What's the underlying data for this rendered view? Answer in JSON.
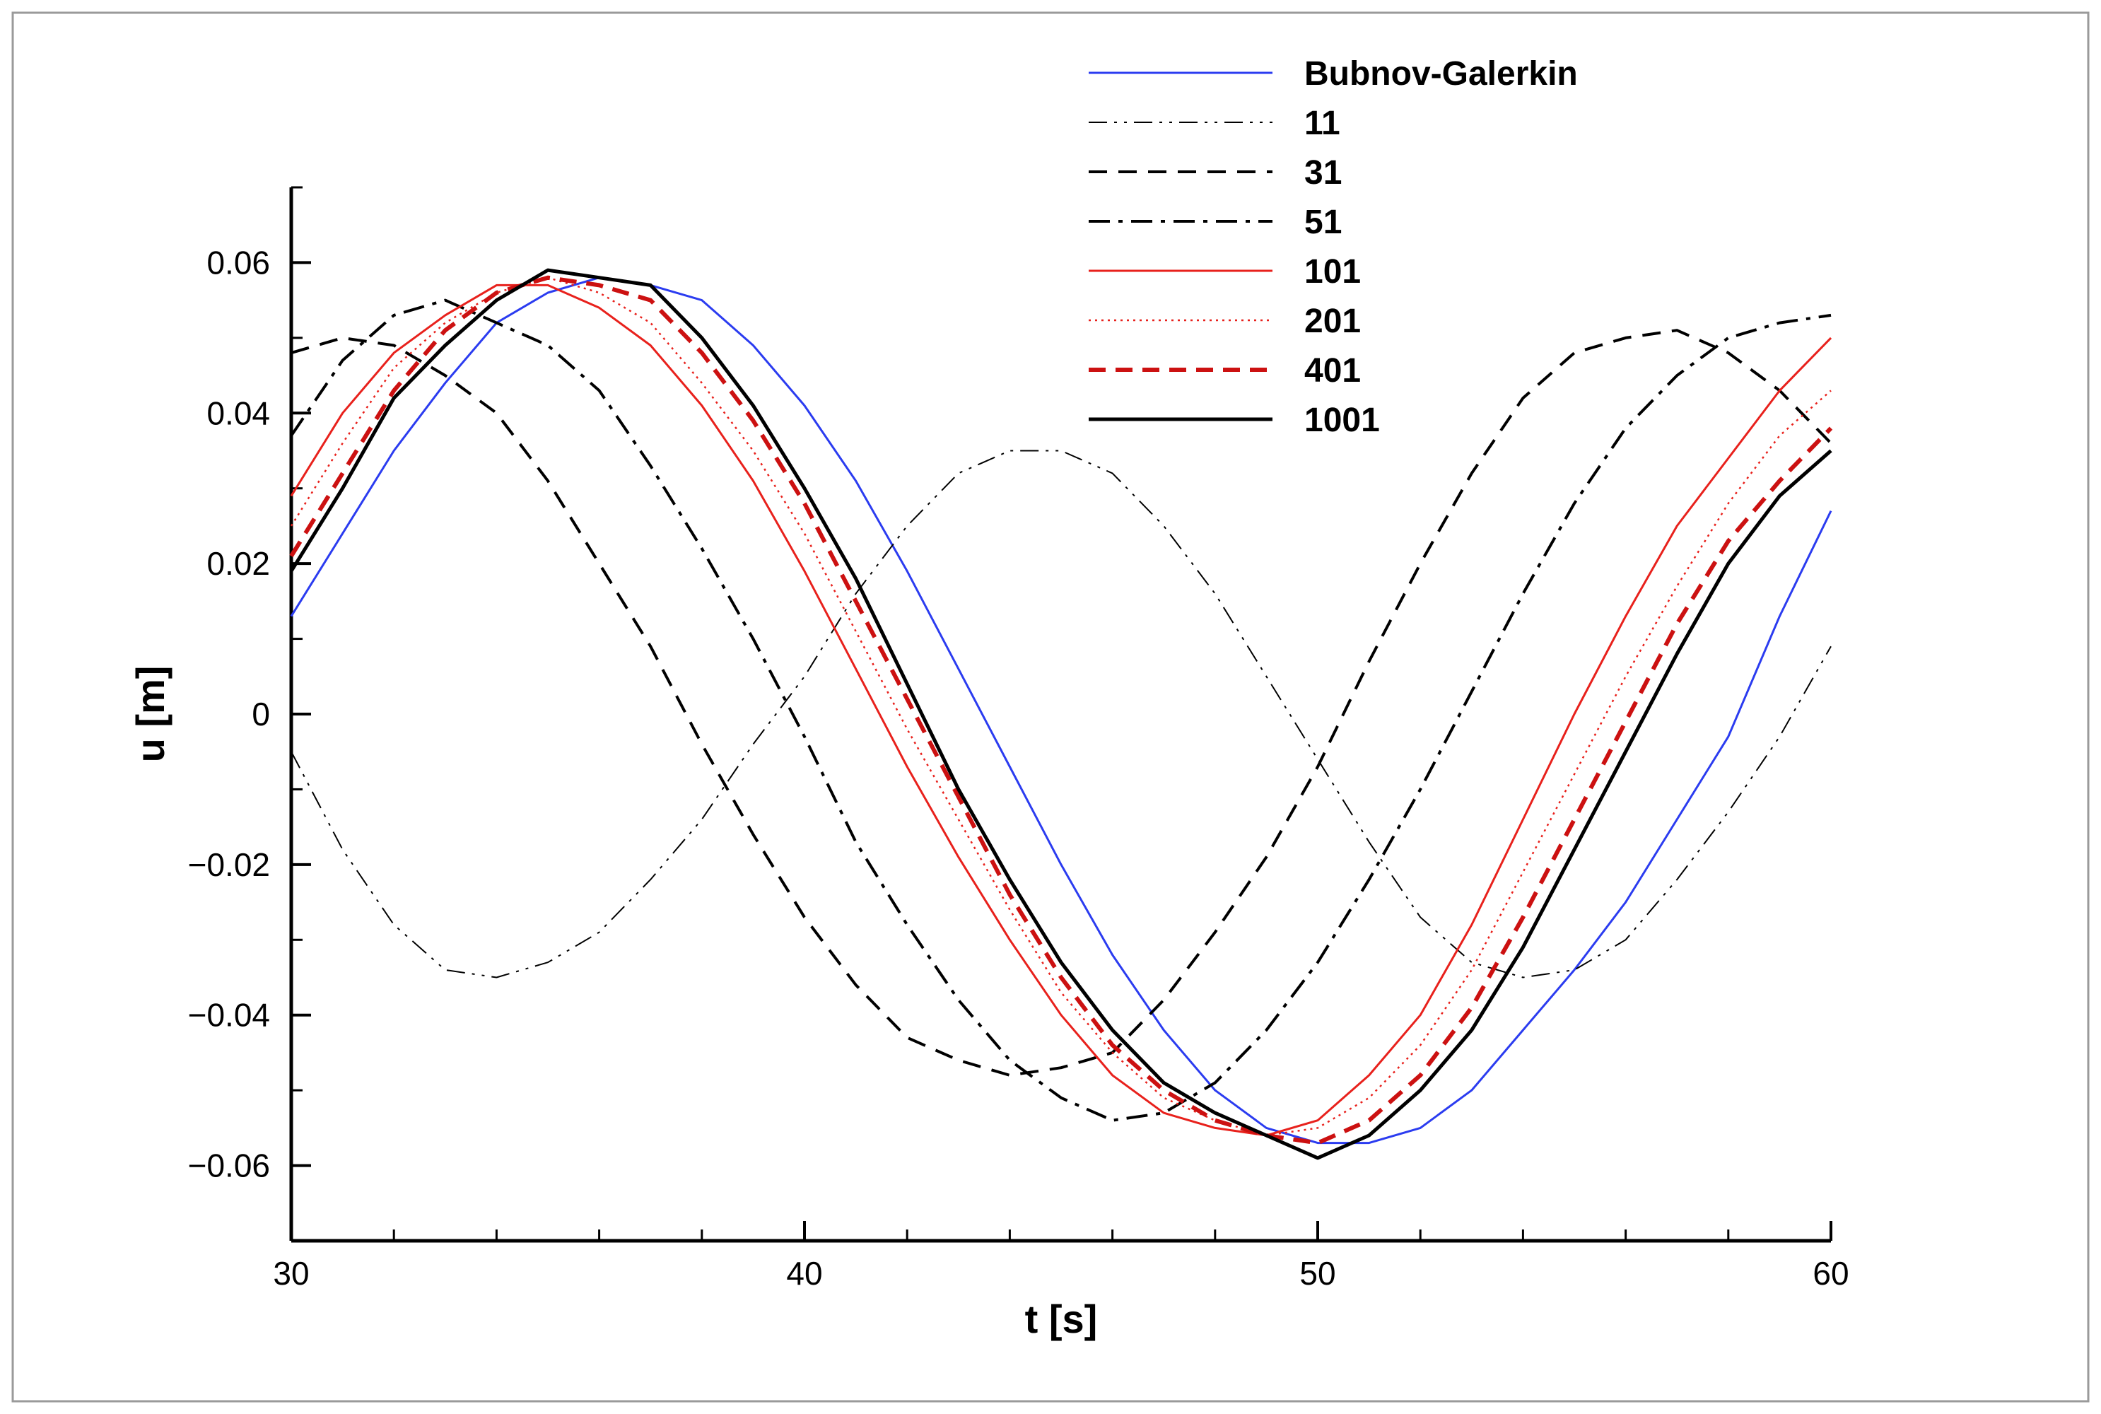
{
  "chart_data": {
    "type": "line",
    "title": "",
    "xlabel": "t [s]",
    "ylabel": "u [m]",
    "xlim": [
      30,
      60
    ],
    "ylim": [
      -0.07,
      0.07
    ],
    "x_ticks": [
      30,
      40,
      50,
      60
    ],
    "x_tick_labels": [
      "30",
      "40",
      "50",
      "60"
    ],
    "y_ticks": [
      -0.06,
      -0.04,
      -0.02,
      0,
      0.02,
      0.04,
      0.06
    ],
    "y_tick_labels": [
      "-0.06",
      "-0.04",
      "-0.02",
      "0",
      "0.02",
      "0.04",
      "0.06"
    ],
    "grid": false,
    "legend_position": "top-right",
    "series": [
      {
        "name": "Bubnov-Galerkin",
        "color": "#2b3cf0",
        "dash": "solid",
        "x": [
          30,
          31,
          32,
          33,
          34,
          35,
          36,
          37,
          38,
          39,
          40,
          41,
          42,
          43,
          44,
          45,
          46,
          47,
          48,
          49,
          50,
          51,
          52,
          53,
          54,
          55,
          56,
          57,
          58,
          59,
          60
        ],
        "y": [
          0.013,
          0.024,
          0.035,
          0.044,
          0.052,
          0.056,
          0.058,
          0.057,
          0.055,
          0.049,
          0.041,
          0.031,
          0.019,
          0.006,
          -0.007,
          -0.02,
          -0.032,
          -0.042,
          -0.05,
          -0.055,
          -0.057,
          -0.057,
          -0.055,
          -0.05,
          -0.042,
          -0.034,
          -0.025,
          -0.014,
          -0.003,
          0.013,
          0.027
        ]
      },
      {
        "name": "11",
        "color": "#000000",
        "dash": "dash-dot-dot",
        "x": [
          30,
          31,
          32,
          33,
          34,
          35,
          36,
          37,
          38,
          39,
          40,
          41,
          42,
          43,
          44,
          45,
          46,
          47,
          48,
          49,
          50,
          51,
          52,
          53,
          54,
          55,
          56,
          57,
          58,
          59,
          60
        ],
        "y": [
          -0.005,
          -0.018,
          -0.028,
          -0.034,
          -0.035,
          -0.033,
          -0.029,
          -0.022,
          -0.014,
          -0.004,
          0.005,
          0.016,
          0.025,
          0.032,
          0.035,
          0.035,
          0.032,
          0.025,
          0.016,
          0.005,
          -0.006,
          -0.017,
          -0.027,
          -0.033,
          -0.035,
          -0.034,
          -0.03,
          -0.022,
          -0.013,
          -0.003,
          0.009
        ]
      },
      {
        "name": "31",
        "color": "#000000",
        "dash": "dashed",
        "x": [
          30,
          31,
          32,
          33,
          34,
          35,
          36,
          37,
          38,
          39,
          40,
          41,
          42,
          43,
          44,
          45,
          46,
          47,
          48,
          49,
          50,
          51,
          52,
          53,
          54,
          55,
          56,
          57,
          58,
          59,
          60
        ],
        "y": [
          0.048,
          0.05,
          0.049,
          0.045,
          0.04,
          0.031,
          0.02,
          0.009,
          -0.004,
          -0.016,
          -0.027,
          -0.036,
          -0.043,
          -0.046,
          -0.048,
          -0.047,
          -0.045,
          -0.038,
          -0.029,
          -0.019,
          -0.007,
          0.007,
          0.02,
          0.032,
          0.042,
          0.048,
          0.05,
          0.051,
          0.048,
          0.043,
          0.036
        ]
      },
      {
        "name": "51",
        "color": "#000000",
        "dash": "dash-dot",
        "x": [
          30,
          31,
          32,
          33,
          34,
          35,
          36,
          37,
          38,
          39,
          40,
          41,
          42,
          43,
          44,
          45,
          46,
          47,
          48,
          49,
          50,
          51,
          52,
          53,
          54,
          55,
          56,
          57,
          58,
          59,
          60
        ],
        "y": [
          0.037,
          0.047,
          0.053,
          0.055,
          0.052,
          0.049,
          0.043,
          0.033,
          0.022,
          0.01,
          -0.003,
          -0.017,
          -0.028,
          -0.038,
          -0.046,
          -0.051,
          -0.054,
          -0.053,
          -0.049,
          -0.042,
          -0.033,
          -0.022,
          -0.01,
          0.003,
          0.016,
          0.028,
          0.038,
          0.045,
          0.05,
          0.052,
          0.053
        ]
      },
      {
        "name": "101",
        "color": "#e8211c",
        "dash": "solid",
        "x": [
          30,
          31,
          32,
          33,
          34,
          35,
          36,
          37,
          38,
          39,
          40,
          41,
          42,
          43,
          44,
          45,
          46,
          47,
          48,
          49,
          50,
          51,
          52,
          53,
          54,
          55,
          56,
          57,
          58,
          59,
          60
        ],
        "y": [
          0.029,
          0.04,
          0.048,
          0.053,
          0.057,
          0.057,
          0.054,
          0.049,
          0.041,
          0.031,
          0.019,
          0.006,
          -0.007,
          -0.019,
          -0.03,
          -0.04,
          -0.048,
          -0.053,
          -0.055,
          -0.056,
          -0.054,
          -0.048,
          -0.04,
          -0.028,
          -0.014,
          0.0,
          0.013,
          0.025,
          0.034,
          0.043,
          0.05
        ]
      },
      {
        "name": "201",
        "color": "#e8211c",
        "dash": "dotted",
        "x": [
          30,
          31,
          32,
          33,
          34,
          35,
          36,
          37,
          38,
          39,
          40,
          41,
          42,
          43,
          44,
          45,
          46,
          47,
          48,
          49,
          50,
          51,
          52,
          53,
          54,
          55,
          56,
          57,
          58,
          59,
          60
        ],
        "y": [
          0.025,
          0.036,
          0.046,
          0.052,
          0.056,
          0.058,
          0.056,
          0.052,
          0.044,
          0.035,
          0.024,
          0.011,
          -0.002,
          -0.014,
          -0.026,
          -0.037,
          -0.045,
          -0.051,
          -0.054,
          -0.056,
          -0.055,
          -0.051,
          -0.044,
          -0.034,
          -0.021,
          -0.008,
          0.005,
          0.017,
          0.028,
          0.037,
          0.043
        ]
      },
      {
        "name": "401",
        "color": "#cc1111",
        "dash": "thick-dashed",
        "x": [
          30,
          31,
          32,
          33,
          34,
          35,
          36,
          37,
          38,
          39,
          40,
          41,
          42,
          43,
          44,
          45,
          46,
          47,
          48,
          49,
          50,
          51,
          52,
          53,
          54,
          55,
          56,
          57,
          58,
          59,
          60
        ],
        "y": [
          0.021,
          0.032,
          0.043,
          0.051,
          0.056,
          0.058,
          0.057,
          0.055,
          0.048,
          0.039,
          0.028,
          0.015,
          0.002,
          -0.011,
          -0.024,
          -0.035,
          -0.044,
          -0.05,
          -0.054,
          -0.056,
          -0.057,
          -0.054,
          -0.048,
          -0.039,
          -0.027,
          -0.014,
          -0.001,
          0.012,
          0.023,
          0.031,
          0.038
        ]
      },
      {
        "name": "1001",
        "color": "#000000",
        "dash": "thick-solid",
        "x": [
          30,
          31,
          32,
          33,
          34,
          35,
          36,
          37,
          38,
          39,
          40,
          41,
          42,
          43,
          44,
          45,
          46,
          47,
          48,
          49,
          50,
          51,
          52,
          53,
          54,
          55,
          56,
          57,
          58,
          59,
          60
        ],
        "y": [
          0.019,
          0.03,
          0.042,
          0.049,
          0.055,
          0.059,
          0.058,
          0.057,
          0.05,
          0.041,
          0.03,
          0.018,
          0.004,
          -0.01,
          -0.022,
          -0.033,
          -0.042,
          -0.049,
          -0.053,
          -0.056,
          -0.059,
          -0.056,
          -0.05,
          -0.042,
          -0.031,
          -0.018,
          -0.005,
          0.008,
          0.02,
          0.029,
          0.035
        ]
      }
    ]
  }
}
